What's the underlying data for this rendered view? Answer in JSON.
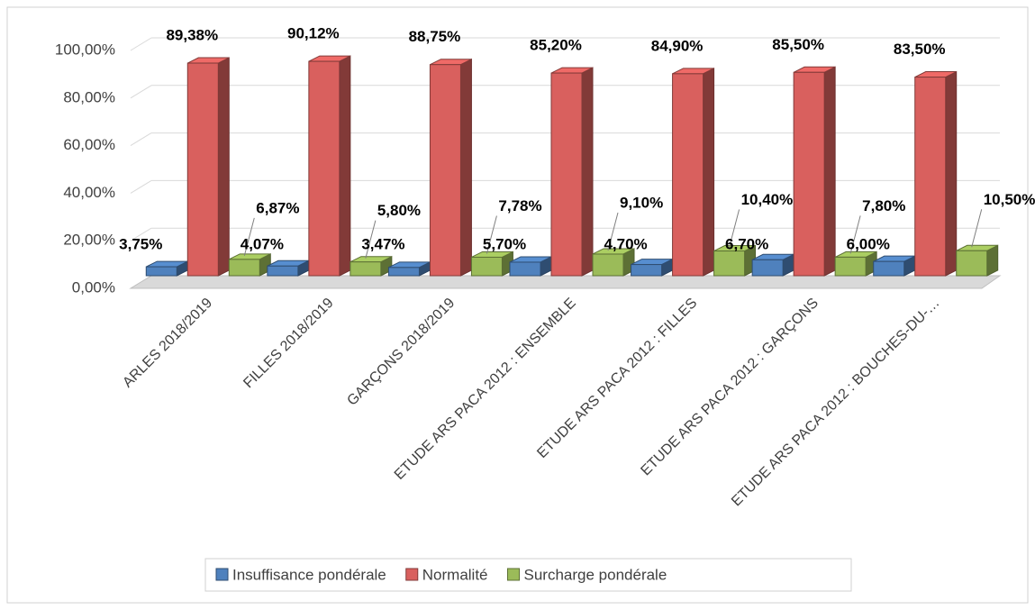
{
  "chart_data": {
    "type": "bar3d",
    "categories": [
      "ARLES 2018/2019",
      "FILLES 2018/2019",
      "GARÇONS 2018/2019",
      "ETUDE ARS PACA 2012 : ENSEMBLE",
      "ETUDE ARS PACA 2012 : FILLES",
      "ETUDE ARS PACA 2012 : GARÇONS",
      "ETUDE ARS PACA 2012 : BOUCHES-DU-…"
    ],
    "series": [
      {
        "name": "Insuffisance pondérale",
        "color": "#4f81bd",
        "values": [
          3.75,
          4.07,
          3.47,
          5.7,
          4.7,
          6.7,
          6.0
        ],
        "value_labels": [
          "3,75%",
          "4,07%",
          "3,47%",
          "5,70%",
          "4,70%",
          "6,70%",
          "6,00%"
        ]
      },
      {
        "name": "Normalité",
        "color": "#d9605e",
        "values": [
          89.38,
          90.12,
          88.75,
          85.2,
          84.9,
          85.5,
          83.5
        ],
        "value_labels": [
          "89,38%",
          "90,12%",
          "88,75%",
          "85,20%",
          "84,90%",
          "85,50%",
          "83,50%"
        ]
      },
      {
        "name": "Surcharge pondérale",
        "color": "#9bbb59",
        "values": [
          6.87,
          5.8,
          7.78,
          9.1,
          10.4,
          7.8,
          10.5
        ],
        "value_labels": [
          "6,87%",
          "5,80%",
          "7,78%",
          "9,10%",
          "10,40%",
          "7,80%",
          "10,50%"
        ]
      }
    ],
    "ylim": [
      0,
      100
    ],
    "yticks": [
      {
        "value": 0,
        "label": "0,00%"
      },
      {
        "value": 20,
        "label": "20,00%"
      },
      {
        "value": 40,
        "label": "40,00%"
      },
      {
        "value": 60,
        "label": "60,00%"
      },
      {
        "value": 80,
        "label": "80,00%"
      },
      {
        "value": 100,
        "label": "100,00%"
      }
    ],
    "grid": true,
    "legend": "bottom"
  }
}
